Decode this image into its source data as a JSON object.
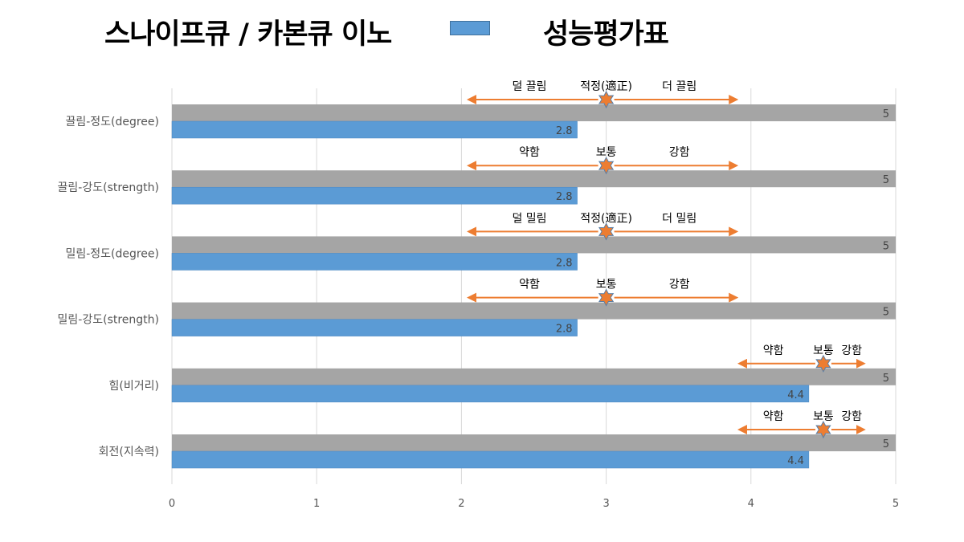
{
  "title": "스나이프큐 / 카본큐 이노",
  "legend_label": "성능평가표",
  "colors": {
    "max_bar": "#a5a5a5",
    "value_bar": "#5b9bd5",
    "arrow": "#ed7d31",
    "star": "#ed7d31",
    "star_stroke": "#5b7fa6",
    "grid": "#d9d9d9"
  },
  "chart_data": {
    "type": "bar",
    "orientation": "horizontal",
    "categories": [
      "끌림-정도(degree)",
      "끌림-강도(strength)",
      "밀림-정도(degree)",
      "밀림-강도(strength)",
      "힘(비거리)",
      "회전(지속력)"
    ],
    "series": [
      {
        "name": "",
        "values": [
          5,
          5,
          5,
          5,
          5,
          5
        ]
      },
      {
        "name": "성능평가표",
        "values": [
          2.8,
          2.8,
          2.8,
          2.8,
          4.4,
          4.4
        ]
      }
    ],
    "value_labels": [
      [
        "5",
        "5",
        "5",
        "5",
        "5",
        "5"
      ],
      [
        "2.8",
        "2.8",
        "2.8",
        "2.8",
        "4.4",
        "4.4"
      ]
    ],
    "xlim": [
      0,
      5
    ],
    "xticks": [
      "0",
      "1",
      "2",
      "3",
      "4",
      "5"
    ],
    "grid": true,
    "annotations": [
      {
        "left": "덜 끌림",
        "center": "적정(適正)",
        "right": "더 끌림",
        "from": 2.05,
        "mid": 3,
        "to": 3.9
      },
      {
        "left": "약함",
        "center": "보통",
        "right": "강함",
        "from": 2.05,
        "mid": 3,
        "to": 3.9
      },
      {
        "left": "덜 밀림",
        "center": "적정(適正)",
        "right": "더 밀림",
        "from": 2.05,
        "mid": 3,
        "to": 3.9
      },
      {
        "left": "약함",
        "center": "보통",
        "right": "강함",
        "from": 2.05,
        "mid": 3,
        "to": 3.9
      },
      {
        "left": "약함",
        "center": "보통",
        "right": "강함",
        "from": 3.92,
        "mid": 4.5,
        "to": 4.78
      },
      {
        "left": "약함",
        "center": "보통",
        "right": "강함",
        "from": 3.92,
        "mid": 4.5,
        "to": 4.78
      }
    ]
  }
}
